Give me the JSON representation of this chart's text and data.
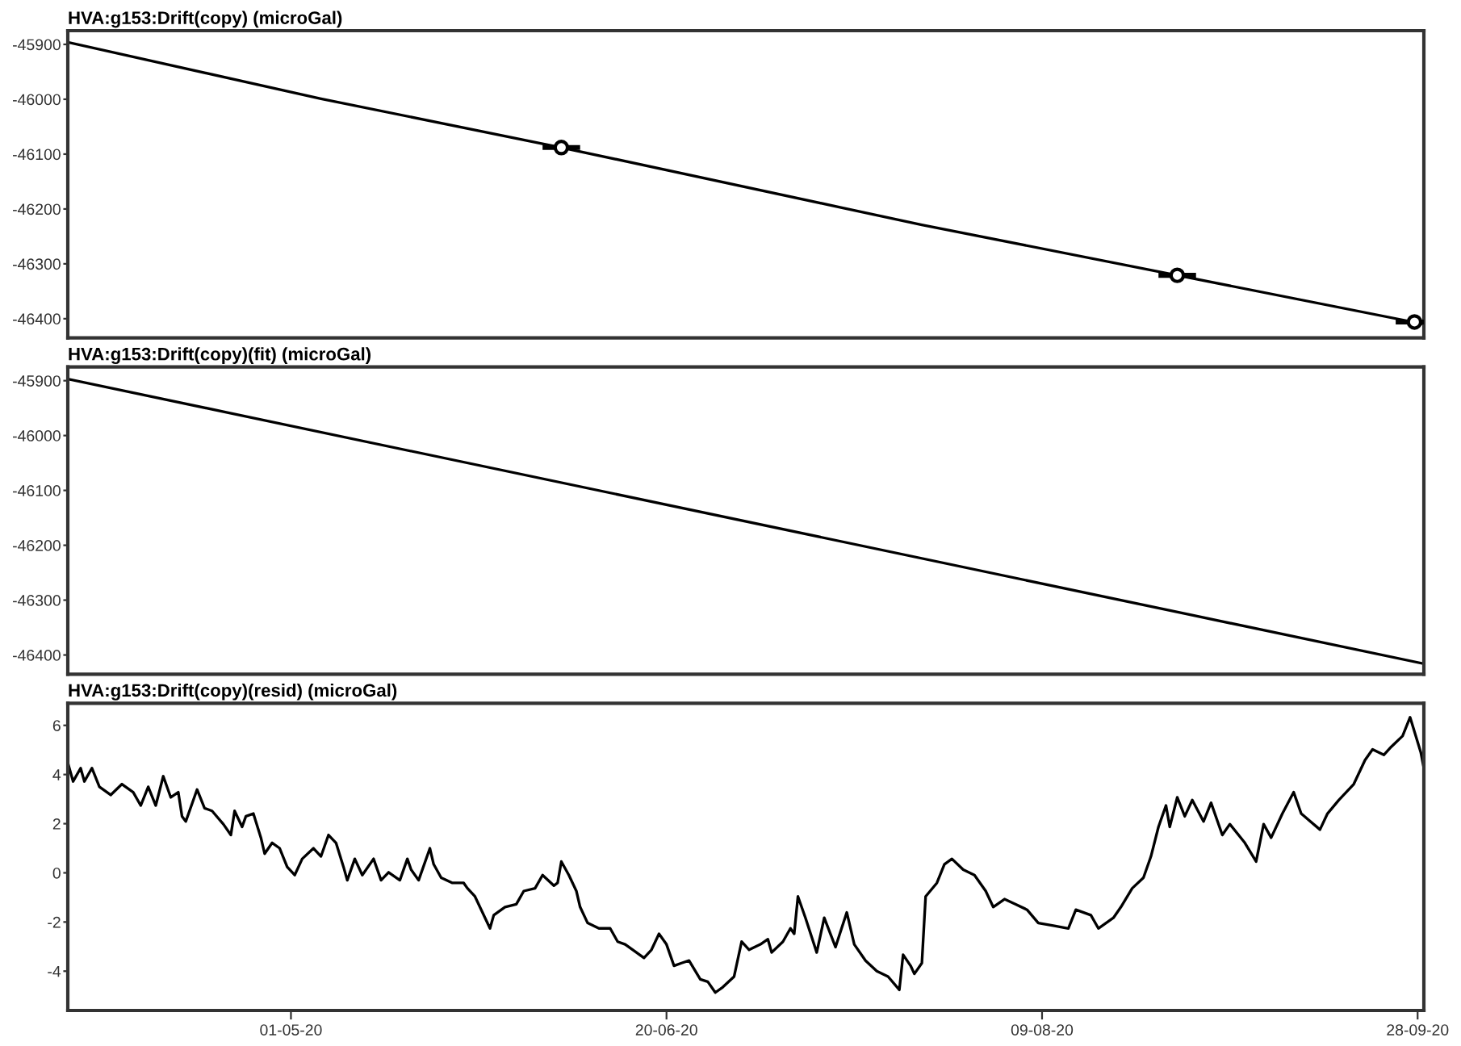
{
  "chart_data": [
    {
      "type": "line",
      "title": "HVA:g153:Drift(copy) (microGal)",
      "xlim": [
        "2020-04-01T07:00",
        "2020-09-28T20:00"
      ],
      "ylim": [
        -46435,
        -45875
      ],
      "yticks": [
        -45900,
        -46000,
        -46100,
        -46200,
        -46300,
        -46400
      ],
      "tick_labels": "y",
      "series": [
        {
          "color": "#000000",
          "marker": "none",
          "x": [
            "2020-04-01T07:00",
            "2020-05-05",
            "2020-06-06",
            "2020-07-24",
            "2020-08-27",
            "2020-09-28T20:00"
          ],
          "values": [
            -45896,
            -45999,
            -46088,
            -46229,
            -46321,
            -46410
          ]
        },
        {
          "type": "scatter",
          "color": "#000000",
          "marker": "circle",
          "x": [
            "2020-06-06",
            "2020-08-27",
            "2020-09-27T14:00"
          ],
          "values": [
            -46088,
            -46321,
            -46406
          ],
          "xerrors": [
            2.5,
            2.5,
            2.5
          ]
        }
      ]
    },
    {
      "type": "line",
      "title": "HVA:g153:Drift(copy)(fit) (microGal)",
      "xlim": [
        "2020-04-01T07:00",
        "2020-09-28T20:00"
      ],
      "ylim": [
        -46435,
        -45875
      ],
      "yticks": [
        -45900,
        -46000,
        -46100,
        -46200,
        -46300,
        -46400
      ],
      "tick_labels": "y",
      "series": [
        {
          "color": "#000000",
          "marker": "none",
          "x": [
            "2020-04-01T07:00",
            "2020-09-28T20:00"
          ],
          "values": [
            -45897,
            -46416
          ]
        }
      ]
    },
    {
      "type": "line",
      "title": "HVA:g153:Drift(copy)(resid) (microGal)",
      "xlim": [
        "2020-04-01T07:00",
        "2020-09-28T20:00"
      ],
      "ylim": [
        -5.6,
        6.9
      ],
      "yticks": [
        -4,
        -2,
        0,
        2,
        4,
        6
      ],
      "xticks": [
        {
          "value": "2020-05-01",
          "label": "01-05-20"
        },
        {
          "value": "2020-06-20",
          "label": "20-06-20"
        },
        {
          "value": "2020-08-09",
          "label": "09-08-20"
        },
        {
          "value": "2020-09-28",
          "label": "28-09-20"
        }
      ],
      "series": [
        {
          "color": "#000000",
          "marker": "none",
          "x": [
            "2020-04-01T07:00",
            "2020-04-02",
            "2020-04-03",
            "2020-04-03T12:00",
            "2020-04-04T12:00",
            "2020-04-05T12:00",
            "2020-04-07",
            "2020-04-08T12:00",
            "2020-04-10",
            "2020-04-11",
            "2020-04-12",
            "2020-04-13",
            "2020-04-14",
            "2020-04-15",
            "2020-04-16",
            "2020-04-16T12:00",
            "2020-04-17",
            "2020-04-18T12:00",
            "2020-04-19T12:00",
            "2020-04-20T12:00",
            "2020-04-22",
            "2020-04-23",
            "2020-04-23T12:00",
            "2020-04-24T12:00",
            "2020-04-25",
            "2020-04-26",
            "2020-04-27",
            "2020-04-27T12:00",
            "2020-04-28T12:00",
            "2020-04-29T12:00",
            "2020-04-30T12:00",
            "2020-05-01T12:00",
            "2020-05-02T12:00",
            "2020-05-04",
            "2020-05-05",
            "2020-05-06",
            "2020-05-07",
            "2020-05-08",
            "2020-05-08T12:00",
            "2020-05-09T12:00",
            "2020-05-10T12:00",
            "2020-05-12",
            "2020-05-13",
            "2020-05-14",
            "2020-05-15T12:00",
            "2020-05-16T12:00",
            "2020-05-17",
            "2020-05-18",
            "2020-05-19T12:00",
            "2020-05-20",
            "2020-05-21",
            "2020-05-22T12:00",
            "2020-05-24",
            "2020-05-24T12:00",
            "2020-05-25T12:00",
            "2020-05-26T12:00",
            "2020-05-27T12:00",
            "2020-05-28",
            "2020-05-29T12:00",
            "2020-05-31",
            "2020-06-01",
            "2020-06-02T12:00",
            "2020-06-03T12:00",
            "2020-06-05",
            "2020-06-05T12:00",
            "2020-06-06",
            "2020-06-07",
            "2020-06-08",
            "2020-06-08T12:00",
            "2020-06-09T12:00",
            "2020-06-11",
            "2020-06-12T12:00",
            "2020-06-13T12:00",
            "2020-06-14T12:00",
            "2020-06-16",
            "2020-06-17",
            "2020-06-18",
            "2020-06-19",
            "2020-06-20",
            "2020-06-21",
            "2020-06-22",
            "2020-06-23",
            "2020-06-24T12:00",
            "2020-06-25T12:00",
            "2020-06-26T12:00",
            "2020-06-27T12:00",
            "2020-06-29",
            "2020-06-30",
            "2020-07-01",
            "2020-07-02T12:00",
            "2020-07-03T12:00",
            "2020-07-04",
            "2020-07-05T12:00",
            "2020-07-06T12:00",
            "2020-07-07",
            "2020-07-07T12:00",
            "2020-07-08T12:00",
            "2020-07-10",
            "2020-07-11",
            "2020-07-12T12:00",
            "2020-07-14",
            "2020-07-15",
            "2020-07-16T12:00",
            "2020-07-18",
            "2020-07-19T12:00",
            "2020-07-21",
            "2020-07-21T12:00",
            "2020-07-22T12:00",
            "2020-07-23",
            "2020-07-24",
            "2020-07-24T12:00",
            "2020-07-26",
            "2020-07-27",
            "2020-07-28",
            "2020-07-29T12:00",
            "2020-07-31",
            "2020-08-01T12:00",
            "2020-08-02T12:00",
            "2020-08-04",
            "2020-08-05T12:00",
            "2020-08-07",
            "2020-08-08T12:00",
            "2020-08-10T12:00",
            "2020-08-12T12:00",
            "2020-08-13T12:00",
            "2020-08-15T12:00",
            "2020-08-16T12:00",
            "2020-08-18T12:00",
            "2020-08-19T12:00",
            "2020-08-21",
            "2020-08-22T12:00",
            "2020-08-23T12:00",
            "2020-08-24T12:00",
            "2020-08-25T12:00",
            "2020-08-26",
            "2020-08-27",
            "2020-08-28",
            "2020-08-29",
            "2020-08-30T12:00",
            "2020-08-31T12:00",
            "2020-09-02",
            "2020-09-03",
            "2020-09-05",
            "2020-09-06T12:00",
            "2020-09-07T12:00",
            "2020-09-08T12:00",
            "2020-09-10",
            "2020-09-11T12:00",
            "2020-09-12T12:00",
            "2020-09-15",
            "2020-09-16",
            "2020-09-17T12:00",
            "2020-09-19T12:00",
            "2020-09-21",
            "2020-09-22",
            "2020-09-23T12:00",
            "2020-09-24T12:00",
            "2020-09-26",
            "2020-09-27",
            "2020-09-28T10:00",
            "2020-09-28T20:00"
          ],
          "values": [
            4.48,
            3.72,
            4.26,
            3.72,
            4.26,
            3.5,
            3.17,
            3.61,
            3.28,
            2.74,
            3.5,
            2.74,
            3.93,
            3.07,
            3.28,
            2.3,
            2.09,
            3.39,
            2.63,
            2.52,
            1.98,
            1.54,
            2.52,
            1.87,
            2.3,
            2.41,
            1.43,
            0.78,
            1.22,
            1.0,
            0.24,
            -0.09,
            0.57,
            1.0,
            0.67,
            1.54,
            1.22,
            0.24,
            -0.3,
            0.57,
            -0.09,
            0.57,
            -0.3,
            0.02,
            -0.3,
            0.57,
            0.13,
            -0.3,
            1.0,
            0.35,
            -0.2,
            -0.41,
            -0.41,
            -0.63,
            -0.96,
            -1.61,
            -2.26,
            -1.72,
            -1.39,
            -1.28,
            -0.74,
            -0.63,
            -0.09,
            -0.52,
            -0.41,
            0.46,
            -0.09,
            -0.74,
            -1.39,
            -2.04,
            -2.26,
            -2.26,
            -2.8,
            -2.91,
            -3.24,
            -3.46,
            -3.13,
            -2.48,
            -2.91,
            -3.78,
            -3.67,
            -3.57,
            -4.33,
            -4.43,
            -4.87,
            -4.65,
            -4.22,
            -2.8,
            -3.13,
            -2.91,
            -2.7,
            -3.24,
            -2.8,
            -2.26,
            -2.48,
            -0.96,
            -1.83,
            -3.24,
            -1.83,
            -3.02,
            -1.61,
            -2.91,
            -3.57,
            -4.0,
            -4.22,
            -4.76,
            -3.33,
            -3.78,
            -4.11,
            -3.67,
            -0.96,
            -0.41,
            0.35,
            0.57,
            0.13,
            -0.09,
            -0.74,
            -1.39,
            -1.07,
            -1.28,
            -1.5,
            -2.04,
            -2.15,
            -2.26,
            -1.5,
            -1.72,
            -2.26,
            -1.83,
            -1.39,
            -0.63,
            -0.2,
            0.67,
            1.87,
            2.74,
            1.87,
            3.07,
            2.3,
            2.96,
            2.09,
            2.85,
            1.54,
            1.98,
            1.22,
            0.46,
            1.98,
            1.43,
            2.41,
            3.28,
            2.41,
            1.76,
            2.41,
            2.96,
            3.61,
            4.59,
            5.02,
            4.8,
            5.13,
            5.57,
            6.33,
            4.91,
            4.26
          ]
        }
      ]
    }
  ]
}
